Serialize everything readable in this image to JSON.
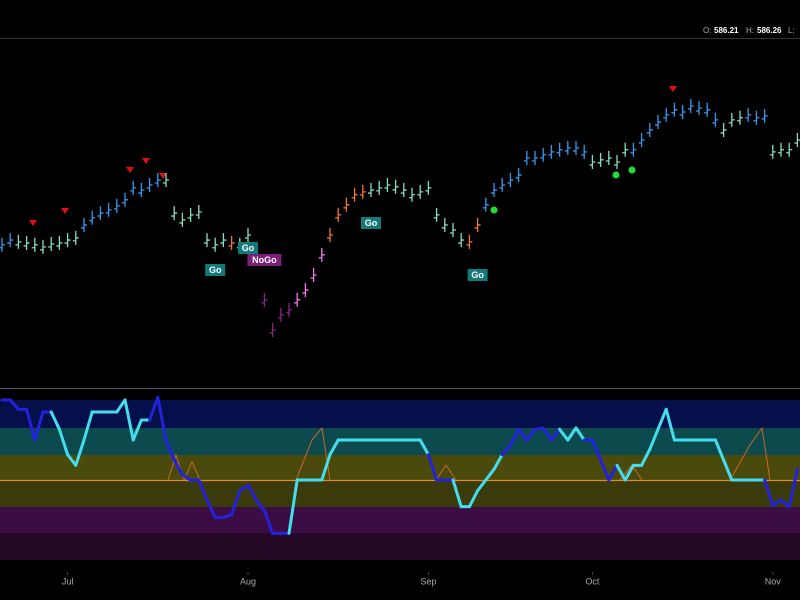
{
  "header": {
    "o_label": "O:",
    "o": 586.21,
    "h_label": "H:",
    "h": 586.26,
    "l_label": "L:"
  },
  "chart_data": [
    {
      "type": "price-bars",
      "values": [
        544.8,
        546.1,
        545.6,
        545.3,
        544.8,
        544.2,
        545.0,
        545.3,
        546.1,
        546.7,
        550.3,
        552.3,
        553.6,
        554.5,
        555.6,
        557.3,
        560.6,
        560.0,
        561.4,
        562.8,
        562.8,
        553.6,
        551.7,
        553.1,
        553.9,
        546.1,
        544.8,
        546.1,
        545.3,
        544.8,
        547.5,
        542.0,
        529.5,
        521.1,
        525.3,
        526.7,
        529.5,
        532.2,
        536.4,
        542.0,
        547.5,
        553.1,
        555.9,
        558.7,
        559.5,
        560.0,
        560.6,
        561.4,
        560.9,
        560.0,
        558.7,
        559.5,
        560.6,
        553.1,
        550.3,
        548.9,
        546.1,
        545.6,
        550.3,
        555.9,
        560.0,
        561.4,
        562.8,
        564.2,
        568.9,
        568.9,
        569.8,
        570.6,
        571.2,
        571.7,
        571.7,
        570.6,
        567.8,
        568.4,
        568.9,
        567.8,
        571.2,
        571.2,
        573.9,
        576.7,
        578.9,
        580.9,
        582.3,
        581.7,
        583.4,
        582.8,
        582.3,
        579.5,
        576.7,
        579.5,
        580.1,
        580.9,
        580.1,
        580.6,
        570.6,
        571.2,
        571.2,
        573.9
      ],
      "colors": [
        "#39e",
        "#39e",
        "#8db",
        "#8db",
        "#8db",
        "#8db",
        "#8db",
        "#8db",
        "#8db",
        "#8db",
        "#39e",
        "#39e",
        "#39e",
        "#39e",
        "#39e",
        "#39e",
        "#39e",
        "#39e",
        "#39e",
        "#39e",
        "#8db",
        "#8db",
        "#8db",
        "#8db",
        "#8db",
        "#8db",
        "#8db",
        "#8db",
        "#e73",
        "#8db",
        "#8db",
        "#828",
        "#828",
        "#828",
        "#828",
        "#828",
        "#e7e",
        "#e7e",
        "#e7e",
        "#e7e",
        "#e73",
        "#e73",
        "#e73",
        "#e73",
        "#e73",
        "#8db",
        "#8db",
        "#8db",
        "#8db",
        "#8db",
        "#8db",
        "#8db",
        "#8db",
        "#8db",
        "#8db",
        "#8db",
        "#8db",
        "#e73",
        "#e73",
        "#39e",
        "#39e",
        "#39e",
        "#39e",
        "#39e",
        "#39e",
        "#39e",
        "#39e",
        "#39e",
        "#39e",
        "#39e",
        "#39e",
        "#39e",
        "#8db",
        "#8db",
        "#8db",
        "#8db",
        "#8db",
        "#39e",
        "#39e",
        "#39e",
        "#39e",
        "#39e",
        "#39e",
        "#39e",
        "#39e",
        "#39e",
        "#39e",
        "#39e",
        "#8db",
        "#8db",
        "#8db",
        "#39e",
        "#39e",
        "#39e",
        "#8db",
        "#8db",
        "#8db",
        "#8db"
      ],
      "ylim": [
        506.1,
        601.7
      ],
      "annotations": [
        "Go",
        "Go",
        "NoGo",
        "Go",
        "Go"
      ]
    },
    {
      "type": "oscillator",
      "values": [
        6.0,
        6.0,
        5.3,
        5.3,
        3.0,
        5.1,
        5.1,
        3.8,
        1.9,
        1.1,
        3.0,
        5.1,
        5.1,
        5.1,
        5.1,
        6.0,
        3.0,
        4.5,
        4.5,
        6.2,
        3.0,
        1.5,
        0.4,
        0,
        0,
        -1.5,
        -2.8,
        -2.8,
        -2.6,
        -0.8,
        -0.4,
        -1.5,
        -2.3,
        -4.0,
        -4.0,
        -4.0,
        0,
        0,
        0,
        0,
        1.9,
        3.0,
        3.0,
        3.0,
        3.0,
        3.0,
        3.0,
        3.0,
        3.0,
        3.0,
        3.0,
        3.0,
        1.9,
        0,
        0,
        0,
        -2.0,
        -2.0,
        -0.8,
        0,
        0.8,
        1.9,
        2.6,
        3.8,
        3.0,
        3.8,
        3.9,
        3.0,
        3.8,
        3.0,
        3.9,
        3.0,
        3.0,
        1.5,
        0,
        1.1,
        0,
        1.1,
        1.1,
        2.3,
        3.8,
        5.3,
        3.0,
        3.0,
        3.0,
        3.0,
        3.0,
        3.0,
        1.5,
        0,
        0,
        0,
        0,
        0,
        -1.9,
        -1.5,
        -2.0,
        0.8
      ],
      "colors": [
        "#22d",
        "#22d",
        "#22d",
        "#22d",
        "#22d",
        "#22d",
        "#22d",
        "#4de",
        "#4de",
        "#4de",
        "#4de",
        "#4de",
        "#4de",
        "#4de",
        "#4de",
        "#4de",
        "#4de",
        "#4de",
        "#4de",
        "#22d",
        "#22d",
        "#22d",
        "#22d",
        "#22d",
        "#22d",
        "#22d",
        "#22d",
        "#22d",
        "#22d",
        "#22d",
        "#22d",
        "#22d",
        "#22d",
        "#22d",
        "#22d",
        "#22d",
        "#4de",
        "#4de",
        "#4de",
        "#4de",
        "#4de",
        "#4de",
        "#4de",
        "#4de",
        "#4de",
        "#4de",
        "#4de",
        "#4de",
        "#4de",
        "#4de",
        "#4de",
        "#4de",
        "#4de",
        "#22d",
        "#22d",
        "#22d",
        "#4de",
        "#4de",
        "#4de",
        "#4de",
        "#4de",
        "#4de",
        "#22d",
        "#22d",
        "#22d",
        "#22d",
        "#22d",
        "#22d",
        "#22d",
        "#4de",
        "#4de",
        "#4de",
        "#22d",
        "#22d",
        "#22d",
        "#22d",
        "#4de",
        "#4de",
        "#4de",
        "#4de",
        "#4de",
        "#4de",
        "#4de",
        "#4de",
        "#4de",
        "#4de",
        "#4de",
        "#4de",
        "#4de",
        "#4de",
        "#4de",
        "#4de",
        "#4de",
        "#4de",
        "#22d",
        "#22d",
        "#22d",
        "#22d"
      ],
      "ylim": [
        -6,
        6
      ],
      "xticks": [
        {
          "value": 8,
          "label": "Jul"
        },
        {
          "value": 30,
          "label": "Aug"
        },
        {
          "value": 52,
          "label": "Sep"
        },
        {
          "value": 72,
          "label": "Oct"
        },
        {
          "value": 94,
          "label": "Nov"
        }
      ]
    }
  ]
}
